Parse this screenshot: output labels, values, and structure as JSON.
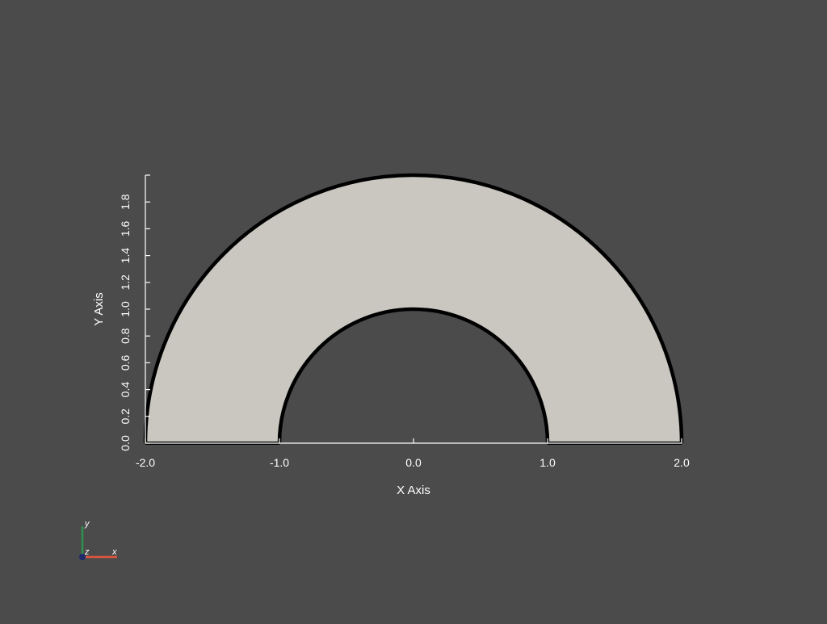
{
  "colors": {
    "background": "#4b4b4b",
    "fill": "#c9c7c0",
    "outline": "#000000",
    "axis": "#ffffff",
    "x_axis_color": "#e0563b",
    "y_axis_color": "#2f8f4e",
    "z_axis_color": "#1d2a6b"
  },
  "chart_data": {
    "type": "area",
    "shape": "half-annulus",
    "inner_radius": 1.0,
    "outer_radius": 2.0,
    "xlim": [
      -2.0,
      2.0
    ],
    "ylim": [
      0.0,
      2.0
    ],
    "xticks": [
      -2.0,
      -1.0,
      0.0,
      1.0,
      2.0
    ],
    "yticks": [
      0.0,
      0.2,
      0.4,
      0.6,
      0.8,
      1.0,
      1.2,
      1.4,
      1.6,
      1.8
    ],
    "xlabel": "X Axis",
    "ylabel": "Y Axis",
    "grid": false
  },
  "orientation_widget": {
    "x_label": "x",
    "y_label": "y",
    "z_label": "z"
  }
}
